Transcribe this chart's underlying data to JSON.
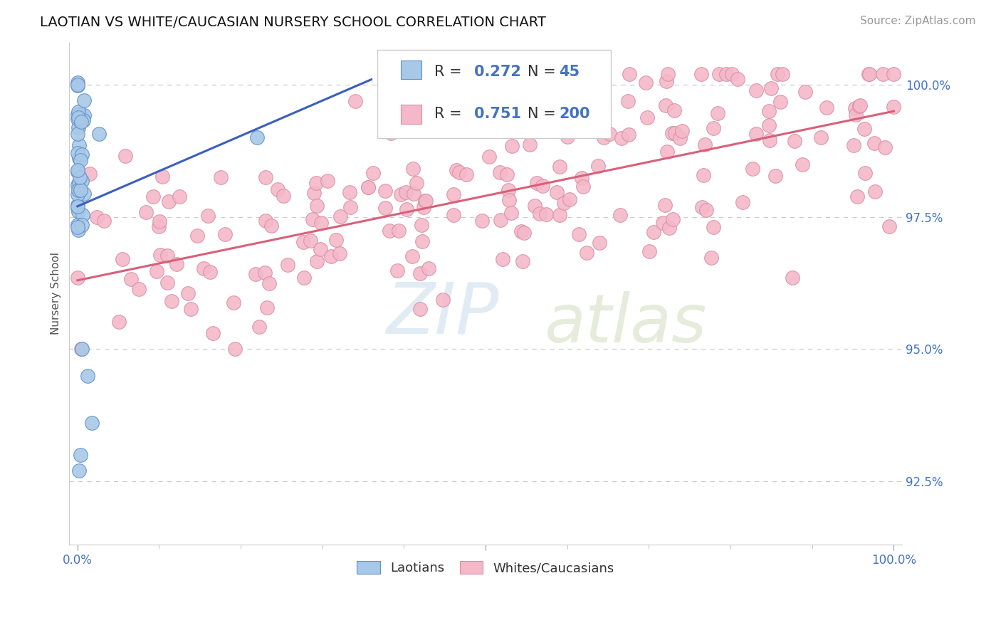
{
  "title": "LAOTIAN VS WHITE/CAUCASIAN NURSERY SCHOOL CORRELATION CHART",
  "source": "Source: ZipAtlas.com",
  "ylabel": "Nursery School",
  "ytick_labels": [
    "92.5%",
    "95.0%",
    "97.5%",
    "100.0%"
  ],
  "ytick_values": [
    0.925,
    0.95,
    0.975,
    1.0
  ],
  "xlim": [
    -0.01,
    1.01
  ],
  "ylim": [
    0.913,
    1.008
  ],
  "blue_R": 0.272,
  "blue_N": 45,
  "pink_R": 0.751,
  "pink_N": 200,
  "legend_label_blue": "Laotians",
  "legend_label_pink": "Whites/Caucasians",
  "watermark_zip": "ZIP",
  "watermark_atlas": "atlas",
  "blue_scatter_color": "#a8c8e8",
  "pink_scatter_color": "#f5b8c8",
  "blue_line_color": "#3a5fbf",
  "pink_line_color": "#d9607a",
  "blue_edge_color": "#6090c8",
  "pink_edge_color": "#d890a8",
  "grid_color": "#cccccc",
  "background_color": "#ffffff",
  "title_fontsize": 14,
  "axis_label_fontsize": 11,
  "tick_fontsize": 12,
  "legend_fontsize": 15,
  "source_fontsize": 11,
  "legend_R_color": "#4472c4",
  "legend_N_color": "#333333",
  "legend_val_color": "#4472c4"
}
